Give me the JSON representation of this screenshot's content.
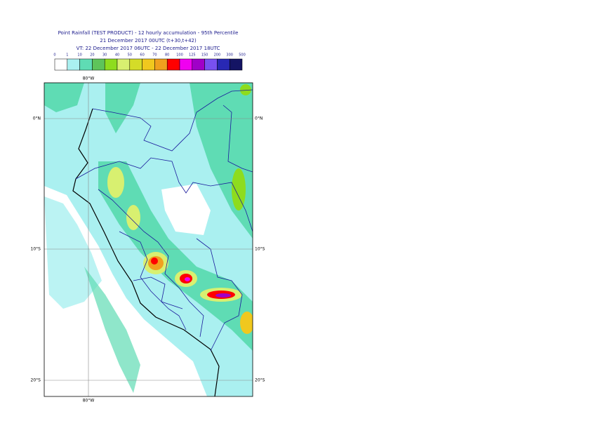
{
  "header": {
    "title": "Point Rainfall (TEST PRODUCT) - 12 hourly accumulation - 95th Percentile",
    "run": "21 December 2017 00UTC (t+30,t+42)",
    "valid": "VT: 22 December 2017 06UTC - 22 December 2017 18UTC"
  },
  "legend": {
    "labels": [
      0,
      1,
      10,
      20,
      30,
      40,
      50,
      60,
      70,
      80,
      100,
      125,
      150,
      200,
      300,
      500
    ],
    "colors": [
      "#ffffff",
      "#aaf0f0",
      "#5fdcb4",
      "#5ec45a",
      "#8edc1e",
      "#d8f070",
      "#d4dc28",
      "#f0c81e",
      "#f0a01e",
      "#ff0000",
      "#f000f0",
      "#a000c8",
      "#7850f0",
      "#2828b4",
      "#141464"
    ]
  },
  "map": {
    "lat_labels_left": [
      "0°N",
      "10°S",
      "20°S"
    ],
    "lat_labels_right": [
      "0°N",
      "10°S",
      "20°S"
    ],
    "lon_label_top": "80°W",
    "lon_label_bottom": "80°W"
  }
}
